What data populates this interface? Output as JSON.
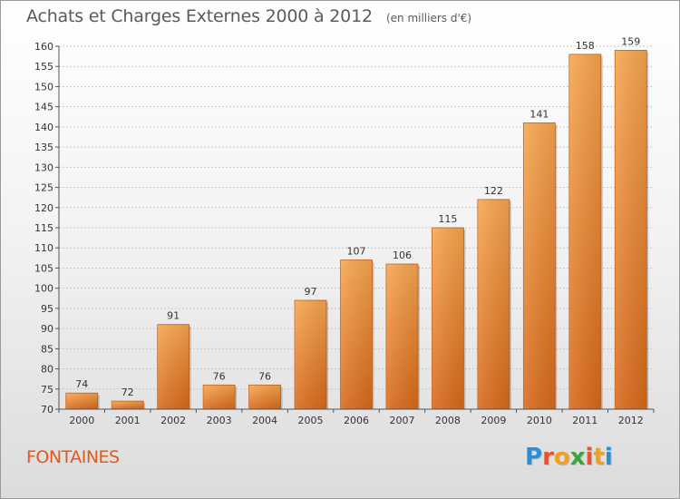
{
  "header": {
    "title": "Achats et Charges Externes 2000 à 2012",
    "unit": "(en milliers d'€)"
  },
  "commune": "FONTAINES",
  "logo": {
    "text": "Proxiti",
    "letter_colors": [
      "#2a8fd6",
      "#e8542a",
      "#f0a020",
      "#3aa53a",
      "#e8542a",
      "#f0a020",
      "#2a8fd6"
    ]
  },
  "colors": {
    "bar_light": "#f7a64f",
    "bar_dark": "#d8691b",
    "gridline": "#c8c8c8"
  },
  "chart_data": {
    "type": "bar",
    "categories": [
      "2000",
      "2001",
      "2002",
      "2003",
      "2004",
      "2005",
      "2006",
      "2007",
      "2008",
      "2009",
      "2010",
      "2011",
      "2012"
    ],
    "values": [
      74,
      72,
      91,
      76,
      76,
      97,
      107,
      106,
      115,
      122,
      141,
      158,
      159
    ],
    "ylim": [
      70,
      160
    ],
    "yticks": [
      70,
      75,
      80,
      85,
      90,
      95,
      100,
      105,
      110,
      115,
      120,
      125,
      130,
      135,
      140,
      145,
      150,
      155,
      160
    ],
    "grid": true,
    "data_labels": true
  }
}
